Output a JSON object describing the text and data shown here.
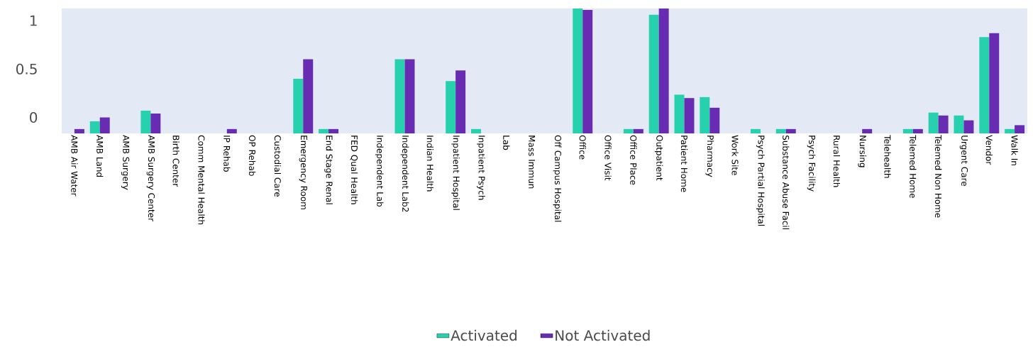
{
  "chart_data": {
    "type": "bar",
    "categories": [
      "AMB Air Water",
      "AMB Land",
      "AMB Surgery",
      "AMB Surgery Center",
      "Birth Center",
      "Comm Mental Health",
      "IP Rehab",
      "OP Rehab",
      "Custodial Care",
      "Emergency Room",
      "End Stage Renal",
      "FED Qual Health",
      "Independent Lab",
      "Independent Lab2",
      "Indian Health",
      "Inpatient Hospital",
      "Inpatient Psych",
      "Lab",
      "Mass Immun",
      "Off Campus Hospital",
      "Office",
      "Office Visit",
      "Office Place",
      "Outpatient",
      "Patient Home",
      "Pharmacy",
      "Work Site",
      "Psych Partial Hospital",
      "Substance Abuse Facil",
      "Psych Facility",
      "Rural Health",
      "Nursing",
      "Telehealth",
      "Telemed Home",
      "Telemed Non Home",
      "Urgent Care",
      "Vendor",
      "Walk In"
    ],
    "series": [
      {
        "name": "Activated",
        "color": "#27d1ad",
        "values": [
          null,
          0.125,
          null,
          0.235,
          null,
          null,
          null,
          null,
          null,
          0.565,
          0.045,
          null,
          null,
          0.765,
          null,
          0.54,
          0.045,
          null,
          null,
          null,
          1.29,
          null,
          0.045,
          1.225,
          0.4,
          0.375,
          null,
          0.045,
          0.045,
          null,
          null,
          null,
          null,
          0.045,
          0.215,
          0.185,
          0.995,
          0.045
        ],
        "base": [
          null,
          -0.165,
          null,
          -0.165,
          null,
          null,
          null,
          null,
          null,
          -0.165,
          -0.165,
          null,
          null,
          -0.165,
          null,
          -0.165,
          -0.165,
          null,
          null,
          null,
          -0.165,
          null,
          -0.165,
          -0.165,
          -0.165,
          -0.165,
          null,
          -0.165,
          -0.165,
          null,
          null,
          null,
          null,
          -0.165,
          -0.165,
          -0.165,
          -0.165,
          -0.165
        ]
      },
      {
        "name": "Not Activated",
        "color": "#672cb2",
        "values": [
          0.045,
          0.165,
          null,
          0.205,
          null,
          null,
          0.045,
          null,
          null,
          0.765,
          0.045,
          null,
          null,
          0.765,
          null,
          0.65,
          null,
          null,
          null,
          null,
          1.275,
          null,
          0.045,
          1.29,
          0.365,
          0.265,
          null,
          null,
          0.045,
          null,
          null,
          0.045,
          null,
          0.045,
          0.185,
          0.135,
          1.035,
          0.085
        ],
        "base": [
          -0.165,
          -0.165,
          null,
          -0.165,
          null,
          null,
          -0.165,
          null,
          null,
          -0.165,
          -0.165,
          null,
          null,
          -0.165,
          null,
          -0.165,
          null,
          null,
          null,
          null,
          -0.165,
          null,
          -0.165,
          -0.165,
          -0.165,
          -0.165,
          null,
          null,
          -0.165,
          null,
          null,
          -0.165,
          null,
          -0.165,
          -0.165,
          -0.165,
          -0.165,
          -0.165
        ]
      }
    ],
    "ylim": [
      -0.165,
      1.125
    ],
    "yticks": [
      0,
      0.5,
      1
    ],
    "legend": "bottom"
  }
}
